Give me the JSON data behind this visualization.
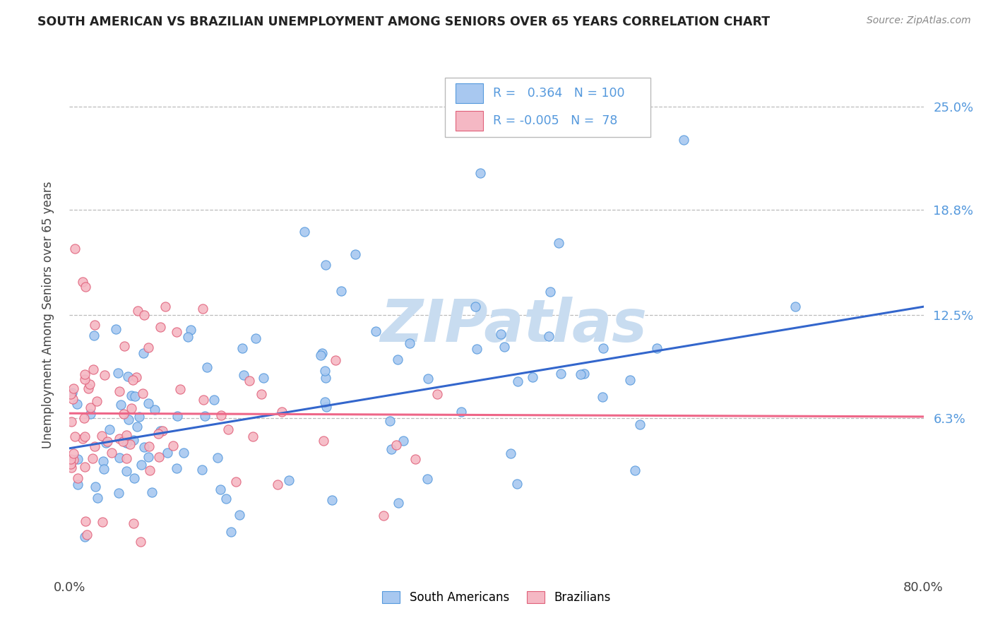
{
  "title": "SOUTH AMERICAN VS BRAZILIAN UNEMPLOYMENT AMONG SENIORS OVER 65 YEARS CORRELATION CHART",
  "source": "Source: ZipAtlas.com",
  "ylabel": "Unemployment Among Seniors over 65 years",
  "xlim": [
    0.0,
    0.8
  ],
  "ylim": [
    -0.03,
    0.28
  ],
  "ytick_labels": [
    "25.0%",
    "18.8%",
    "12.5%",
    "6.3%"
  ],
  "ytick_values": [
    0.25,
    0.188,
    0.125,
    0.063
  ],
  "blue_fill": "#A8C8F0",
  "blue_edge": "#5599DD",
  "pink_fill": "#F5B8C4",
  "pink_edge": "#E0607A",
  "blue_line": "#3366CC",
  "pink_line": "#EE6688",
  "watermark_color": "#C8DCF0",
  "legend_R_blue": "0.364",
  "legend_N_blue": "100",
  "legend_R_pink": "-0.005",
  "legend_N_pink": "78",
  "background_color": "#FFFFFF",
  "grid_color": "#BBBBBB",
  "right_tick_color": "#5599DD",
  "title_color": "#222222",
  "source_color": "#888888",
  "label_color": "#444444",
  "tick_color": "#444444"
}
